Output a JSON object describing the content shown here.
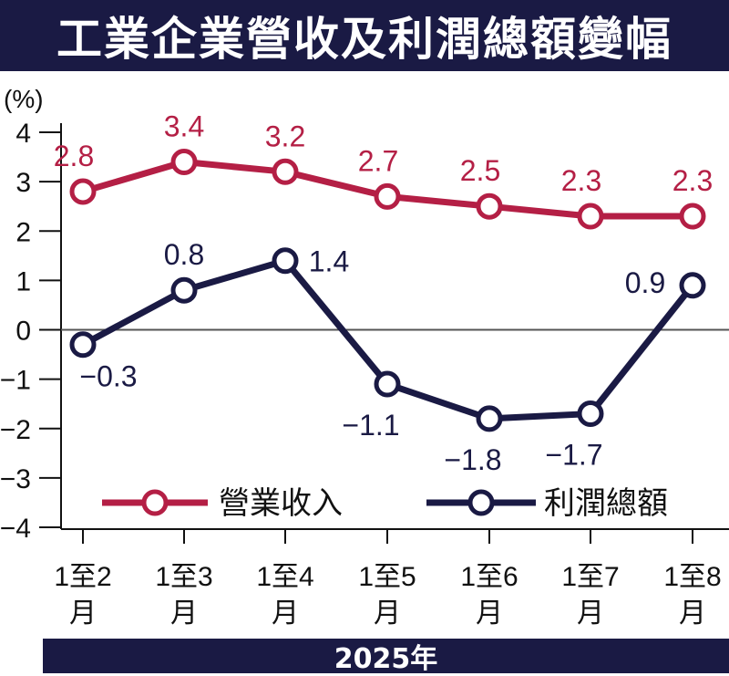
{
  "title": "工業企業營收及利潤總額變幅",
  "chart_data": {
    "type": "line",
    "title": "工業企業營收及利潤總額變幅",
    "ylabel": "(%)",
    "xlabel": "2025年",
    "ylim": [
      -4,
      4
    ],
    "yticks": [
      "4",
      "3",
      "2",
      "1",
      "0",
      "−1",
      "−2",
      "−3",
      "−4"
    ],
    "categories": [
      {
        "top": "1至2",
        "bottom": "月"
      },
      {
        "top": "1至3",
        "bottom": "月"
      },
      {
        "top": "1至4",
        "bottom": "月"
      },
      {
        "top": "1至5",
        "bottom": "月"
      },
      {
        "top": "1至6",
        "bottom": "月"
      },
      {
        "top": "1至7",
        "bottom": "月"
      },
      {
        "top": "1至8",
        "bottom": "月"
      }
    ],
    "legend_placement": "bottom-center",
    "series": [
      {
        "name": "營業收入",
        "color": "#b41f45",
        "values": [
          2.8,
          3.4,
          3.2,
          2.7,
          2.5,
          2.3,
          2.3
        ],
        "labels": [
          "2.8",
          "3.4",
          "3.2",
          "2.7",
          "2.5",
          "2.3",
          "2.3"
        ]
      },
      {
        "name": "利潤總額",
        "color": "#1a1a44",
        "values": [
          -0.3,
          0.8,
          1.4,
          -1.1,
          -1.8,
          -1.7,
          0.9
        ],
        "labels": [
          "−0.3",
          "0.8",
          "1.4",
          "−1.1",
          "−1.8",
          "−1.7",
          "0.9"
        ]
      }
    ]
  }
}
